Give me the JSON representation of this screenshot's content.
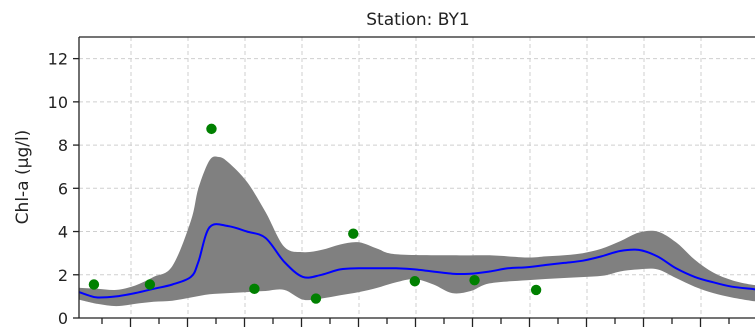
{
  "chart_data": {
    "type": "line",
    "title": "Station: BY1",
    "xlabel": "",
    "ylabel": "Chl-a (µg/l)",
    "ylim": [
      0,
      13
    ],
    "yticks": [
      0,
      2,
      4,
      6,
      8,
      10,
      12
    ],
    "xlim": [
      0,
      365
    ],
    "grid": true,
    "series": [
      {
        "role": "model_median",
        "color": "#0000ff",
        "x": [
          0,
          5,
          10,
          20,
          30,
          40,
          50,
          60,
          64,
          70,
          80,
          90,
          100,
          110,
          120,
          130,
          140,
          150,
          160,
          170,
          180,
          200,
          210,
          220,
          230,
          240,
          250,
          260,
          270,
          280,
          290,
          300,
          310,
          320,
          330,
          340,
          350,
          360,
          365
        ],
        "y": [
          1.2,
          1.05,
          0.95,
          1.0,
          1.15,
          1.35,
          1.55,
          1.9,
          2.6,
          4.2,
          4.25,
          4.0,
          3.7,
          2.6,
          1.9,
          2.0,
          2.25,
          2.3,
          2.3,
          2.3,
          2.25,
          2.05,
          2.05,
          2.15,
          2.3,
          2.35,
          2.45,
          2.55,
          2.65,
          2.85,
          3.1,
          3.15,
          2.85,
          2.3,
          1.9,
          1.65,
          1.45,
          1.35,
          1.3
        ]
      },
      {
        "role": "model_upper_bound",
        "color": "#808080",
        "x": [
          0,
          10,
          20,
          30,
          40,
          50,
          60,
          64,
          70,
          75,
          80,
          90,
          100,
          110,
          120,
          130,
          140,
          150,
          160,
          170,
          200,
          220,
          240,
          250,
          260,
          270,
          280,
          290,
          300,
          310,
          320,
          330,
          340,
          350,
          360,
          365
        ],
        "y": [
          1.4,
          1.35,
          1.3,
          1.5,
          1.9,
          2.4,
          4.5,
          6.0,
          7.3,
          7.45,
          7.2,
          6.3,
          4.9,
          3.3,
          3.05,
          3.15,
          3.4,
          3.5,
          3.2,
          2.95,
          2.9,
          2.9,
          2.8,
          2.85,
          2.9,
          3.0,
          3.2,
          3.55,
          3.95,
          4.0,
          3.5,
          2.7,
          2.1,
          1.75,
          1.55,
          1.5
        ]
      },
      {
        "role": "model_lower_bound",
        "color": "#808080",
        "x": [
          0,
          10,
          20,
          30,
          40,
          50,
          60,
          70,
          80,
          90,
          100,
          110,
          120,
          130,
          140,
          150,
          160,
          170,
          180,
          190,
          200,
          210,
          220,
          240,
          260,
          280,
          290,
          300,
          310,
          320,
          330,
          340,
          350,
          360,
          365
        ],
        "y": [
          0.85,
          0.65,
          0.55,
          0.65,
          0.75,
          0.8,
          0.95,
          1.1,
          1.15,
          1.2,
          1.25,
          1.3,
          0.85,
          0.9,
          1.05,
          1.2,
          1.4,
          1.65,
          1.8,
          1.55,
          1.15,
          1.25,
          1.6,
          1.75,
          1.85,
          1.95,
          2.15,
          2.25,
          2.25,
          1.85,
          1.45,
          1.15,
          0.95,
          0.8,
          0.75
        ]
      },
      {
        "role": "observations",
        "color": "#008000",
        "x": [
          8,
          38,
          71,
          94,
          127,
          147,
          180,
          212,
          245
        ],
        "y": [
          1.55,
          1.55,
          8.75,
          1.35,
          0.9,
          3.9,
          1.7,
          1.75,
          1.3
        ]
      }
    ]
  }
}
